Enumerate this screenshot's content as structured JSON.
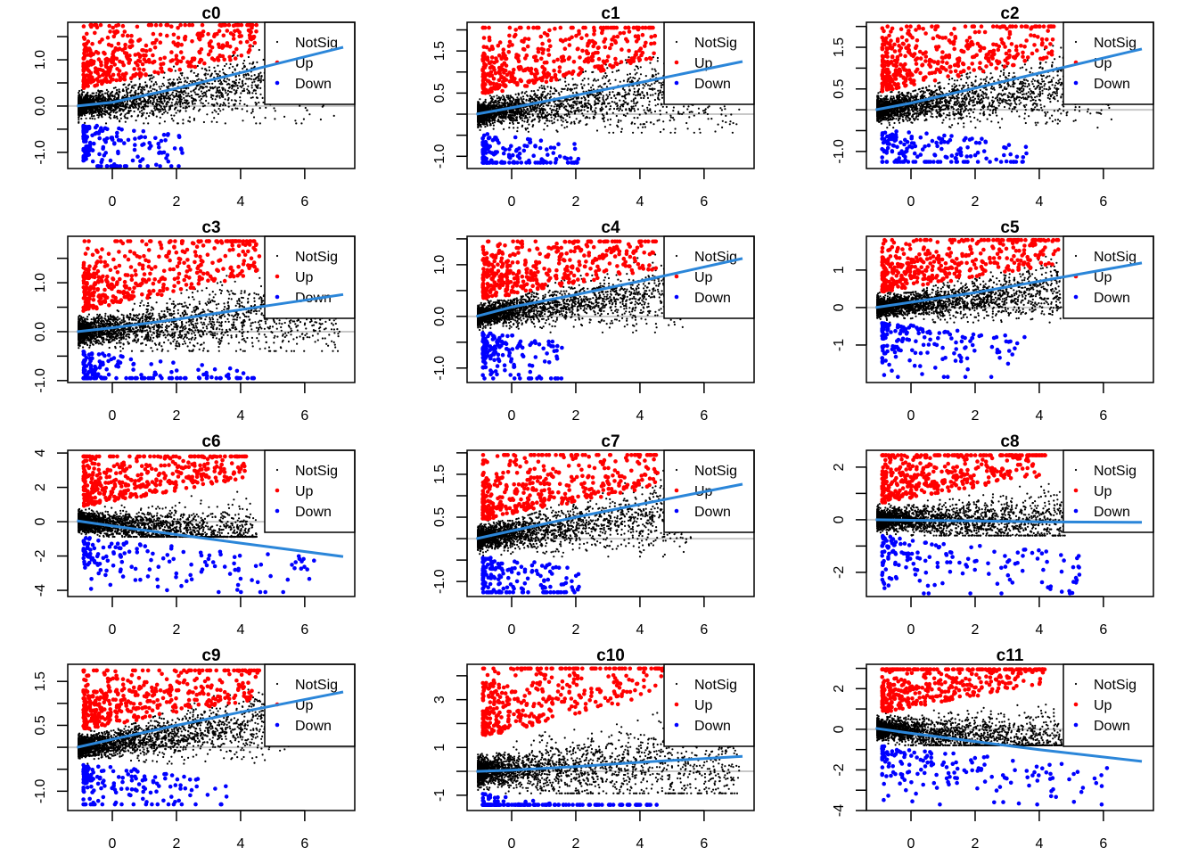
{
  "chart_data": [
    {
      "type": "scatter",
      "title": "c0",
      "xlabel": "",
      "ylabel": "",
      "xlim": [
        -1.39,
        7.56
      ],
      "ylim": [
        -1.35,
        1.81
      ],
      "xticks": [
        0,
        2,
        4,
        6
      ],
      "xtick_labels": [
        "0",
        "2",
        "4",
        "6"
      ],
      "yticks": [
        -1.0,
        -0.5,
        0.0,
        0.5,
        1.0,
        1.5
      ],
      "ytick_labels": [
        "-1.0",
        "",
        "0.0",
        "",
        "1.0",
        ""
      ],
      "legend": [
        "NotSig",
        "Up",
        "Down"
      ],
      "legend_position": "top-right",
      "trend_line": {
        "x": [
          -1.1,
          0,
          2,
          4,
          7.2
        ],
        "y": [
          0.0,
          0.08,
          0.38,
          0.72,
          1.27
        ]
      },
      "hline": 0,
      "points_summary": {
        "up": {
          "x_range": [
            -0.9,
            4.5
          ],
          "y_max": 1.75,
          "threshold": 0.3
        },
        "down": {
          "x_range": [
            -0.9,
            2.3
          ],
          "y_min": -1.3,
          "threshold": -0.3
        },
        "notsig_max_x": 7.0
      }
    },
    {
      "type": "scatter",
      "title": "c1",
      "xlabel": "",
      "ylabel": "",
      "xlim": [
        -1.39,
        7.56
      ],
      "ylim": [
        -1.29,
        2.18
      ],
      "xticks": [
        0,
        2,
        4,
        6
      ],
      "xtick_labels": [
        "0",
        "2",
        "4",
        "6"
      ],
      "yticks": [
        -1.0,
        -0.5,
        0.0,
        0.5,
        1.0,
        1.5,
        2.0
      ],
      "ytick_labels": [
        "-1.0",
        "",
        "",
        "0.5",
        "",
        "1.5",
        ""
      ],
      "legend": [
        "NotSig",
        "Up",
        "Down"
      ],
      "legend_position": "top-right",
      "trend_line": {
        "x": [
          -1.1,
          0,
          2,
          4,
          7.2
        ],
        "y": [
          0.0,
          0.15,
          0.45,
          0.75,
          1.25
        ]
      },
      "hline": 0,
      "points_summary": {
        "up": {
          "x_range": [
            -0.9,
            4.5
          ],
          "y_max": 2.05,
          "threshold": 0.3
        },
        "down": {
          "x_range": [
            -0.9,
            2.1
          ],
          "y_min": -1.15,
          "threshold": -0.3
        },
        "notsig_max_x": 7.1
      }
    },
    {
      "type": "scatter",
      "title": "c2",
      "xlabel": "",
      "ylabel": "",
      "xlim": [
        -1.39,
        7.56
      ],
      "ylim": [
        -1.41,
        2.1
      ],
      "xticks": [
        0,
        2,
        4,
        6
      ],
      "xtick_labels": [
        "0",
        "2",
        "4",
        "6"
      ],
      "yticks": [
        -1.0,
        -0.5,
        0.0,
        0.5,
        1.0,
        1.5,
        2.0
      ],
      "ytick_labels": [
        "-1.0",
        "",
        "",
        "0.5",
        "",
        "1.5",
        ""
      ],
      "legend": [
        "NotSig",
        "Up",
        "Down"
      ],
      "legend_position": "top-right",
      "trend_line": {
        "x": [
          -1.1,
          0,
          2,
          4,
          7.2
        ],
        "y": [
          0.0,
          0.16,
          0.52,
          0.88,
          1.46
        ]
      },
      "hline": 0,
      "points_summary": {
        "up": {
          "x_range": [
            -0.9,
            4.5
          ],
          "y_max": 2.0,
          "threshold": 0.3
        },
        "down": {
          "x_range": [
            -0.9,
            3.6
          ],
          "y_min": -1.25,
          "threshold": -0.3
        },
        "notsig_max_x": 6.3
      }
    },
    {
      "type": "scatter",
      "title": "c3",
      "xlabel": "",
      "ylabel": "",
      "xlim": [
        -1.39,
        7.56
      ],
      "ylim": [
        -1.04,
        1.95
      ],
      "xticks": [
        0,
        2,
        4,
        6
      ],
      "xtick_labels": [
        "0",
        "2",
        "4",
        "6"
      ],
      "yticks": [
        -1.0,
        -0.5,
        0.0,
        0.5,
        1.0,
        1.5
      ],
      "ytick_labels": [
        "-1.0",
        "",
        "0.0",
        "",
        "1.0",
        ""
      ],
      "legend": [
        "NotSig",
        "Up",
        "Down"
      ],
      "legend_position": "top-right",
      "trend_line": {
        "x": [
          -1.1,
          0,
          2,
          4,
          7.2
        ],
        "y": [
          0.0,
          0.08,
          0.25,
          0.45,
          0.76
        ]
      },
      "hline": 0,
      "points_summary": {
        "up": {
          "x_range": [
            -0.9,
            4.6
          ],
          "y_max": 1.85,
          "threshold": 0.3
        },
        "down": {
          "x_range": [
            -0.9,
            4.6
          ],
          "y_min": -0.95,
          "threshold": -0.3
        },
        "notsig_max_x": 7.1
      }
    },
    {
      "type": "scatter",
      "title": "c4",
      "xlabel": "",
      "ylabel": "",
      "xlim": [
        -1.39,
        7.56
      ],
      "ylim": [
        -1.28,
        1.55
      ],
      "xticks": [
        0,
        2,
        4,
        6
      ],
      "xtick_labels": [
        "0",
        "2",
        "4",
        "6"
      ],
      "yticks": [
        -1.0,
        -0.5,
        0.0,
        0.5,
        1.0,
        1.5
      ],
      "ytick_labels": [
        "-1.0",
        "",
        "0.0",
        "",
        "1.0",
        ""
      ],
      "legend": [
        "NotSig",
        "Up",
        "Down"
      ],
      "legend_position": "top-right",
      "trend_line": {
        "x": [
          -1.1,
          0,
          2,
          4,
          7.2
        ],
        "y": [
          0.0,
          0.18,
          0.42,
          0.68,
          1.12
        ]
      },
      "hline": 0,
      "points_summary": {
        "up": {
          "x_range": [
            -0.9,
            4.5
          ],
          "y_max": 1.45,
          "threshold": 0.3
        },
        "down": {
          "x_range": [
            -0.9,
            1.6
          ],
          "y_min": -1.2,
          "threshold": -0.3
        },
        "notsig_max_x": 5.5
      }
    },
    {
      "type": "scatter",
      "title": "c5",
      "xlabel": "",
      "ylabel": "",
      "xlim": [
        -1.39,
        7.56
      ],
      "ylim": [
        -2.0,
        1.9
      ],
      "xticks": [
        0,
        2,
        4,
        6
      ],
      "xtick_labels": [
        "0",
        "2",
        "4",
        "6"
      ],
      "yticks": [
        -1,
        0,
        1
      ],
      "ytick_labels": [
        "-1",
        "0",
        "1"
      ],
      "legend": [
        "NotSig",
        "Up",
        "Down"
      ],
      "legend_position": "top-right",
      "trend_line": {
        "x": [
          -1.1,
          0,
          2,
          4,
          7.2
        ],
        "y": [
          0.0,
          0.14,
          0.4,
          0.7,
          1.19
        ]
      },
      "hline": 0,
      "points_summary": {
        "up": {
          "x_range": [
            -0.9,
            4.6
          ],
          "y_max": 1.8,
          "threshold": 0.3
        },
        "down": {
          "x_range": [
            -0.9,
            3.6
          ],
          "y_min": -1.85,
          "threshold": -0.3
        },
        "notsig_max_x": 4.7
      }
    },
    {
      "type": "scatter",
      "title": "c6",
      "xlabel": "",
      "ylabel": "",
      "xlim": [
        -1.39,
        7.56
      ],
      "ylim": [
        -4.36,
        4.16
      ],
      "xticks": [
        0,
        2,
        4,
        6
      ],
      "xtick_labels": [
        "0",
        "2",
        "4",
        "6"
      ],
      "yticks": [
        -4,
        -2,
        0,
        2,
        4
      ],
      "ytick_labels": [
        "-4",
        "-2",
        "0",
        "2",
        "4"
      ],
      "legend": [
        "NotSig",
        "Up",
        "Down"
      ],
      "legend_position": "top-right",
      "trend_line": {
        "x": [
          -1.1,
          0,
          2,
          4,
          7.2
        ],
        "y": [
          0.05,
          -0.25,
          -0.75,
          -1.25,
          -2.03
        ]
      },
      "hline": 0,
      "points_summary": {
        "up": {
          "x_range": [
            -0.9,
            4.2
          ],
          "y_max": 3.8,
          "threshold": 0.3
        },
        "down": {
          "x_range": [
            -0.9,
            6.3
          ],
          "y_min": -4.1,
          "threshold": -0.3
        },
        "notsig_max_x": 4.5
      }
    },
    {
      "type": "scatter",
      "title": "c7",
      "xlabel": "",
      "ylabel": "",
      "xlim": [
        -1.39,
        7.56
      ],
      "ylim": [
        -1.35,
        2.06
      ],
      "xticks": [
        0,
        2,
        4,
        6
      ],
      "xtick_labels": [
        "0",
        "2",
        "4",
        "6"
      ],
      "yticks": [
        -1.0,
        -0.5,
        0.0,
        0.5,
        1.0,
        1.5,
        2.0
      ],
      "ytick_labels": [
        "-1.0",
        "",
        "",
        "0.5",
        "",
        "1.5",
        ""
      ],
      "legend": [
        "NotSig",
        "Up",
        "Down"
      ],
      "legend_position": "top-right",
      "trend_line": {
        "x": [
          -1.1,
          0,
          2,
          4,
          7.2
        ],
        "y": [
          0.0,
          0.18,
          0.5,
          0.8,
          1.27
        ]
      },
      "hline": 0,
      "points_summary": {
        "up": {
          "x_range": [
            -0.9,
            4.6
          ],
          "y_max": 1.95,
          "threshold": 0.3
        },
        "down": {
          "x_range": [
            -0.9,
            2.1
          ],
          "y_min": -1.25,
          "threshold": -0.3
        },
        "notsig_max_x": 5.8
      }
    },
    {
      "type": "scatter",
      "title": "c8",
      "xlabel": "",
      "ylabel": "",
      "xlim": [
        -1.39,
        7.56
      ],
      "ylim": [
        -2.92,
        2.64
      ],
      "xticks": [
        0,
        2,
        4,
        6
      ],
      "xtick_labels": [
        "0",
        "2",
        "4",
        "6"
      ],
      "yticks": [
        -2,
        -1,
        0,
        1,
        2
      ],
      "ytick_labels": [
        "-2",
        "",
        "0",
        "",
        "2"
      ],
      "legend": [
        "NotSig",
        "Up",
        "Down"
      ],
      "legend_position": "top-right",
      "trend_line": {
        "x": [
          -1.1,
          0,
          2,
          4,
          7.2
        ],
        "y": [
          0.0,
          -0.02,
          -0.05,
          -0.08,
          -0.1
        ]
      },
      "hline": 0,
      "points_summary": {
        "up": {
          "x_range": [
            -0.9,
            4.2
          ],
          "y_max": 2.45,
          "threshold": 0.3
        },
        "down": {
          "x_range": [
            -0.9,
            5.3
          ],
          "y_min": -2.8,
          "threshold": -0.3
        },
        "notsig_max_x": 4.8
      }
    },
    {
      "type": "scatter",
      "title": "c9",
      "xlabel": "",
      "ylabel": "",
      "xlim": [
        -1.39,
        7.56
      ],
      "ylim": [
        -1.44,
        1.89
      ],
      "xticks": [
        0,
        2,
        4,
        6
      ],
      "xtick_labels": [
        "0",
        "2",
        "4",
        "6"
      ],
      "yticks": [
        -1.0,
        -0.5,
        0.0,
        0.5,
        1.0,
        1.5
      ],
      "ytick_labels": [
        "-1.0",
        "",
        "",
        "0.5",
        "",
        "1.5"
      ],
      "legend": [
        "NotSig",
        "Up",
        "Down"
      ],
      "legend_position": "top-right",
      "trend_line": {
        "x": [
          -1.1,
          0,
          2,
          4,
          7.2
        ],
        "y": [
          0.0,
          0.18,
          0.5,
          0.8,
          1.26
        ]
      },
      "hline": 0,
      "points_summary": {
        "up": {
          "x_range": [
            -0.9,
            4.6
          ],
          "y_max": 1.75,
          "threshold": 0.3
        },
        "down": {
          "x_range": [
            -0.9,
            3.6
          ],
          "y_min": -1.3,
          "threshold": -0.3
        },
        "notsig_max_x": 5.6
      }
    },
    {
      "type": "scatter",
      "title": "c10",
      "xlabel": "",
      "ylabel": "",
      "xlim": [
        -1.39,
        7.56
      ],
      "ylim": [
        -1.64,
        4.48
      ],
      "xticks": [
        0,
        2,
        4,
        6
      ],
      "xtick_labels": [
        "0",
        "2",
        "4",
        "6"
      ],
      "yticks": [
        -1,
        0,
        1,
        2,
        3,
        4
      ],
      "ytick_labels": [
        "-1",
        "",
        "1",
        "",
        "3",
        ""
      ],
      "legend": [
        "NotSig",
        "Up",
        "Down"
      ],
      "legend_position": "top-right",
      "trend_line": {
        "x": [
          -1.1,
          0,
          2,
          4,
          7.2
        ],
        "y": [
          0.0,
          0.05,
          0.2,
          0.38,
          0.63
        ]
      },
      "hline": 0,
      "points_summary": {
        "up": {
          "x_range": [
            -0.9,
            6.3
          ],
          "y_max": 4.3,
          "threshold": 0.45
        },
        "down": {
          "x_range": [
            -0.9,
            4.6
          ],
          "y_min": -1.4,
          "threshold": -0.3
        },
        "notsig_max_x": 7.1
      }
    },
    {
      "type": "scatter",
      "title": "c11",
      "xlabel": "",
      "ylabel": "",
      "xlim": [
        -1.39,
        7.56
      ],
      "ylim": [
        -4.0,
        3.2
      ],
      "xticks": [
        0,
        2,
        4,
        6
      ],
      "xtick_labels": [
        "0",
        "2",
        "4",
        "6"
      ],
      "yticks": [
        -4,
        -3,
        -2,
        -1,
        0,
        1,
        2,
        3
      ],
      "ytick_labels": [
        "-4",
        "",
        "-2",
        "",
        "0",
        "",
        "2",
        ""
      ],
      "legend": [
        "NotSig",
        "Up",
        "Down"
      ],
      "legend_position": "top-right",
      "trend_line": {
        "x": [
          -1.1,
          0,
          2,
          4,
          7.2
        ],
        "y": [
          0.05,
          -0.2,
          -0.6,
          -1.0,
          -1.58
        ]
      },
      "hline": 0,
      "points_summary": {
        "up": {
          "x_range": [
            -0.9,
            4.2
          ],
          "y_max": 2.95,
          "threshold": 0.3
        },
        "down": {
          "x_range": [
            -0.9,
            6.3
          ],
          "y_min": -3.7,
          "threshold": -0.3
        },
        "notsig_max_x": 4.7
      }
    }
  ],
  "colors": {
    "notsig": "#000000",
    "up": "#ff0000",
    "down": "#0000ff",
    "trend": "#2b86d9",
    "hline": "#c8c8c8"
  }
}
